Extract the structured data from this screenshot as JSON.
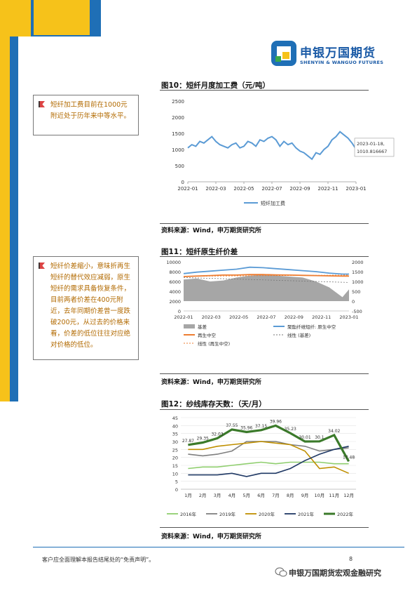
{
  "header": {
    "logo_cn": "申银万国期货",
    "logo_en": "SHENYIN & WANGUO FUTURES",
    "brand_colors": {
      "blue": "#1f6fb6",
      "yellow": "#f6c21a",
      "green": "#39a849"
    }
  },
  "notes": [
    {
      "text": "短纤加工费目前在1000元附近处于历年来中等水平。"
    },
    {
      "text": "短纤价差缩小，意味折再生短纤的替代效应减弱，原生短纤的需求具备恢复条件，目前两者价差在400元附近，去年同期价差曾一度跌破200元，从过去的价格来看，价差的低位往往对应绝对价格的低位。"
    }
  ],
  "figures": [
    {
      "title": "图10：短纤月度加工费（元/吨）",
      "source": "资料来源：Wind，申万期货研究所"
    },
    {
      "title": "图11：短纤原生纤价差",
      "source": "资料来源：Wind，申万期货研究所"
    },
    {
      "title": "图12：纱线库存天数：（天/月）",
      "source": "资料来源：Wind，申万期货研究所"
    }
  ],
  "chart_data": [
    {
      "type": "line",
      "x_ticks": [
        "2022-01",
        "2022-03",
        "2022-05",
        "2022-07",
        "2022-09",
        "2022-11",
        "2023-01"
      ],
      "y_ticks": [
        "2500",
        "2000",
        "1500",
        "1000",
        "500",
        "0"
      ],
      "ylim": [
        0,
        2500
      ],
      "series": [
        {
          "name": "短纤加工费",
          "color": "#5b9bd5",
          "x": [
            0,
            0.3,
            0.6,
            0.9,
            1.2,
            1.5,
            1.8,
            2.1,
            2.4,
            2.7,
            3.0,
            3.3,
            3.6,
            3.9,
            4.2,
            4.5,
            4.8,
            5.1,
            5.4,
            5.7,
            6.0,
            6.3,
            6.6,
            6.9,
            7.2,
            7.5,
            7.8,
            8.1,
            8.4,
            8.7,
            9.0,
            9.3,
            9.6,
            9.9,
            10.2,
            10.5,
            10.8,
            11.1,
            11.4,
            11.7,
            12.0,
            12.3,
            12.6
          ],
          "values": [
            1050,
            1150,
            1100,
            1250,
            1200,
            1300,
            1400,
            1250,
            1150,
            1100,
            1050,
            1150,
            1200,
            1050,
            1100,
            1250,
            1200,
            1100,
            1300,
            1250,
            1350,
            1400,
            1300,
            1100,
            1250,
            1150,
            1200,
            1050,
            950,
            900,
            800,
            700,
            900,
            850,
            1000,
            1100,
            1300,
            1400,
            1550,
            1450,
            1350,
            1200,
            1010
          ]
        }
      ],
      "annotation": {
        "label": "2023-01-18,",
        "value_label": "1010.816667"
      }
    },
    {
      "type": "area",
      "x_ticks": [
        "2022-01",
        "2022-03",
        "2022-05",
        "2022-07",
        "2022-09",
        "2022-11",
        "2023-01"
      ],
      "y_ticks_left": [
        "10000",
        "8000",
        "6000",
        "4000",
        "2000",
        "0"
      ],
      "y_ticks_right": [
        "2000",
        "1500",
        "1000",
        "500",
        "0",
        "-500"
      ],
      "ylim_left": [
        0,
        10000
      ],
      "ylim_right": [
        -500,
        2000
      ],
      "legend": [
        "基差",
        "聚酯纤维短纤: 原生中空",
        "再生中空",
        "线性 (基差)",
        "线性 (再生中空)"
      ],
      "series": [
        {
          "name": "基差",
          "axis": "right",
          "color": "#a6a6a6",
          "x": [
            0,
            1,
            2,
            3,
            4,
            5,
            6,
            7,
            8,
            9,
            10,
            11,
            12,
            12.5
          ],
          "values": [
            1100,
            1150,
            1000,
            1050,
            1200,
            1300,
            1350,
            1300,
            1250,
            1200,
            1000,
            700,
            200,
            600
          ]
        },
        {
          "name": "聚酯纤维短纤: 原生中空",
          "axis": "left",
          "color": "#5b9bd5",
          "x": [
            0,
            1,
            2,
            3,
            4,
            5,
            6,
            7,
            8,
            9,
            10,
            11,
            12,
            12.5
          ],
          "values": [
            7600,
            7900,
            8100,
            8300,
            8500,
            8900,
            8800,
            8600,
            8400,
            8200,
            8000,
            7700,
            7500,
            7500
          ]
        },
        {
          "name": "再生中空",
          "axis": "left",
          "color": "#ed7d31",
          "x": [
            0,
            1,
            2,
            3,
            4,
            5,
            6,
            7,
            8,
            9,
            10,
            11,
            12,
            12.5
          ],
          "values": [
            7000,
            7100,
            7200,
            7300,
            7300,
            7400,
            7400,
            7350,
            7300,
            7250,
            7200,
            7150,
            7100,
            7100
          ]
        }
      ]
    },
    {
      "type": "line",
      "categories": [
        "1月",
        "2月",
        "3月",
        "4月",
        "5月",
        "6月",
        "7月",
        "8月",
        "9月",
        "10月",
        "11月",
        "12月"
      ],
      "y_ticks": [
        "45",
        "40",
        "35",
        "30",
        "25",
        "20",
        "15",
        "10",
        "5",
        "0"
      ],
      "ylim": [
        0,
        45
      ],
      "legend": [
        "2016年",
        "2019年",
        "2020年",
        "2021年",
        "2022年"
      ],
      "series": [
        {
          "name": "2016年",
          "color": "#8fce6e",
          "values": [
            13,
            14,
            14,
            15,
            16,
            17,
            16,
            17,
            17,
            17,
            16,
            16
          ]
        },
        {
          "name": "2019年",
          "color": "#7f7f7f",
          "values": [
            22,
            21,
            22,
            24,
            30,
            30,
            30,
            28,
            27,
            24,
            25,
            26
          ]
        },
        {
          "name": "2020年",
          "color": "#bf8f00",
          "values": [
            25,
            25,
            27,
            28,
            29,
            30,
            29,
            28,
            24,
            13,
            14,
            10
          ]
        },
        {
          "name": "2021年",
          "color": "#1f3864",
          "values": [
            9,
            9,
            9,
            10,
            8,
            10,
            10,
            13,
            18,
            22,
            25,
            27
          ]
        },
        {
          "name": "2022年",
          "color": "#3b7a2a",
          "values": [
            27.87,
            29.35,
            32.03,
            37.55,
            35.96,
            37.15,
            39.96,
            35.23,
            30.01,
            30.1,
            34.02,
            17.48
          ]
        }
      ],
      "data_labels": [
        "27.87",
        "29.35",
        "32.03",
        "37.55",
        "35.96",
        "37.15",
        "39.96",
        "35.23",
        "30.01",
        "30.1",
        "34.02",
        "17.48"
      ]
    }
  ],
  "footer": {
    "disclaimer": "客户应全面理解本报告结尾处的“免责声明”。",
    "page": "8",
    "watermark": "申银万国期货宏观金融研究"
  }
}
